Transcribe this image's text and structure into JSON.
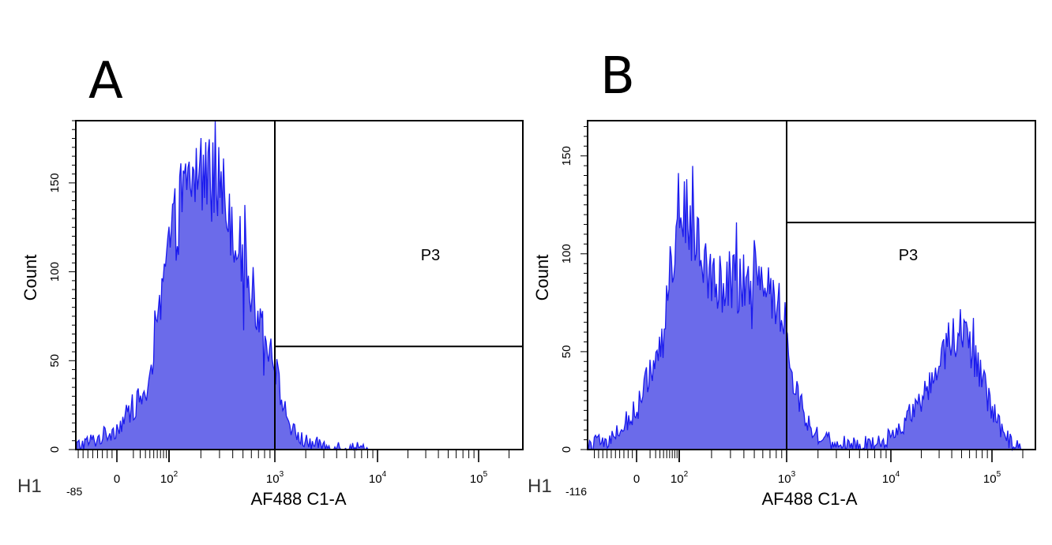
{
  "chart_data": [
    {
      "type": "area",
      "panel_label": "A",
      "histogram_label": "H1",
      "xlabel": "AF488 C1-A",
      "ylabel": "Count",
      "x_scale": "biexponential",
      "x_min_label": "-85",
      "x_tick_labels": [
        {
          "base": "0",
          "exp": "",
          "value": 0
        },
        {
          "base": "10",
          "exp": "2",
          "value": 100
        },
        {
          "base": "10",
          "exp": "3",
          "value": 1000
        },
        {
          "base": "10",
          "exp": "4",
          "value": 10000
        },
        {
          "base": "10",
          "exp": "5",
          "value": 100000
        }
      ],
      "y_ticks": [
        0,
        50,
        100,
        150
      ],
      "ylim": [
        0,
        185
      ],
      "gate": {
        "name": "P3",
        "x_start": 1000,
        "y_level": 58
      },
      "series_color": "#1a1aee",
      "fill_color": "#6b6bea",
      "x": [
        -85,
        -40,
        0,
        40,
        100,
        150,
        200,
        300,
        400,
        500,
        600,
        700,
        800,
        900,
        1000,
        1200,
        1500,
        2000,
        3000,
        5000,
        10000
      ],
      "values": [
        2,
        6,
        12,
        35,
        115,
        148,
        158,
        150,
        128,
        106,
        90,
        78,
        68,
        58,
        48,
        25,
        10,
        4,
        2,
        1,
        0
      ]
    },
    {
      "type": "area",
      "panel_label": "B",
      "histogram_label": "H1",
      "xlabel": "AF488 C1-A",
      "ylabel": "Count",
      "x_scale": "biexponential",
      "x_min_label": "-116",
      "x_tick_labels": [
        {
          "base": "0",
          "exp": "",
          "value": 0
        },
        {
          "base": "10",
          "exp": "2",
          "value": 100
        },
        {
          "base": "10",
          "exp": "3",
          "value": 1000
        },
        {
          "base": "10",
          "exp": "4",
          "value": 10000
        },
        {
          "base": "10",
          "exp": "5",
          "value": 100000
        }
      ],
      "y_ticks": [
        0,
        50,
        100,
        150
      ],
      "ylim": [
        0,
        168
      ],
      "gate": {
        "name": "P3",
        "x_start": 1000,
        "y_level": 116
      },
      "series_color": "#1a1aee",
      "fill_color": "#6b6bea",
      "x": [
        -116,
        -60,
        0,
        40,
        70,
        100,
        150,
        200,
        300,
        400,
        500,
        600,
        700,
        800,
        900,
        1000,
        1200,
        1500,
        2000,
        3000,
        5000,
        8000,
        12000,
        20000,
        30000,
        40000,
        50000,
        60000,
        80000,
        100000,
        130000,
        160000,
        200000
      ],
      "values": [
        2,
        5,
        20,
        58,
        98,
        125,
        112,
        88,
        83,
        87,
        90,
        86,
        82,
        76,
        68,
        55,
        33,
        17,
        7,
        3,
        2,
        4,
        10,
        25,
        45,
        58,
        62,
        55,
        35,
        20,
        8,
        2,
        0
      ]
    }
  ]
}
